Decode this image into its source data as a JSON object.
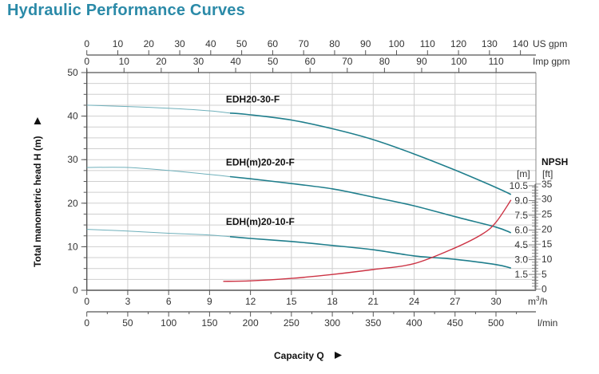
{
  "title": "Hydraulic Performance Curves",
  "colors": {
    "title": "#2b8aa8",
    "pump_curve": "#1f7e8c",
    "npsh_curve": "#cc3344",
    "grid": "#cfcfcf",
    "axis": "#555555"
  },
  "chart_data": {
    "type": "line",
    "title": "Hydraulic Performance Curves",
    "xlabel": "Capacity Q",
    "ylabel": "Total manometric head H (m)",
    "x_unit": "m³/h",
    "xlim": [
      0,
      33
    ],
    "ylim": [
      0,
      50
    ],
    "grid": true,
    "x_ticks": [
      0,
      3,
      6,
      9,
      12,
      15,
      18,
      21,
      24,
      27,
      30
    ],
    "y_ticks": [
      0,
      10,
      20,
      30,
      40,
      50
    ],
    "secondary_x_axes": [
      {
        "unit": "US gpm",
        "position": "top",
        "ticks": [
          0,
          10,
          20,
          30,
          40,
          50,
          60,
          70,
          80,
          90,
          100,
          110,
          120,
          130,
          140
        ],
        "m3h_per_unit": 0.2271
      },
      {
        "unit": "Imp gpm",
        "position": "top",
        "ticks": [
          0,
          10,
          20,
          30,
          40,
          50,
          60,
          70,
          80,
          90,
          100,
          110
        ],
        "m3h_per_unit": 0.2728
      },
      {
        "unit": "l/min",
        "position": "bottom",
        "ticks": [
          0,
          50,
          100,
          150,
          200,
          250,
          300,
          350,
          400,
          450,
          500
        ],
        "m3h_per_unit": 0.06
      }
    ],
    "npsh_axis": {
      "title": "NPSH",
      "m_label": "[m]",
      "ft_label": "[ft]",
      "m_ticks": [
        "1.5",
        "3.0",
        "4.5",
        "6.0",
        "7.5",
        "9.0",
        "10.5"
      ],
      "ft_ticks": [
        0,
        5,
        10,
        15,
        20,
        25,
        30,
        35
      ],
      "range_m": [
        0,
        10.5
      ]
    },
    "series": [
      {
        "name": "EDH20-30-F",
        "kind": "head",
        "x": [
          0,
          3,
          6,
          9,
          10.5,
          12,
          15,
          18,
          21,
          24,
          27,
          30,
          31.1
        ],
        "y": [
          42.5,
          42.2,
          41.8,
          41.2,
          40.7,
          40.3,
          39.1,
          37.1,
          34.6,
          31.3,
          27.6,
          23.6,
          22.0
        ]
      },
      {
        "name": "EDH(m)20-20-F",
        "kind": "head",
        "x": [
          0,
          3,
          6,
          9,
          10.5,
          12,
          15,
          18,
          21,
          24,
          27,
          30,
          31.1
        ],
        "y": [
          28.2,
          28.2,
          27.5,
          26.6,
          26.1,
          25.6,
          24.5,
          23.3,
          21.4,
          19.4,
          16.9,
          14.5,
          13.2
        ]
      },
      {
        "name": "EDH(m)20-10-F",
        "kind": "head",
        "x": [
          0,
          3,
          6,
          9,
          10.5,
          12,
          15,
          18,
          21,
          24,
          27,
          30,
          31.1
        ],
        "y": [
          14.0,
          13.6,
          13.1,
          12.7,
          12.3,
          11.9,
          11.2,
          10.3,
          9.3,
          7.9,
          7.1,
          5.9,
          5.1
        ]
      },
      {
        "name": "NPSH",
        "kind": "npsh_m",
        "x": [
          10,
          12,
          15,
          18,
          21,
          24,
          27,
          29,
          30,
          31.1
        ],
        "y": [
          0.8,
          0.85,
          1.1,
          1.5,
          2.0,
          2.6,
          4.2,
          5.6,
          6.8,
          9.05
        ]
      }
    ],
    "annotations": [
      {
        "text": "EDH20-30-F",
        "x": 10.2,
        "y": 42.0
      },
      {
        "text": "EDH(m)20-20-F",
        "x": 10.2,
        "y": 27.6
      },
      {
        "text": "EDH(m)20-10-F",
        "x": 10.2,
        "y": 13.9
      }
    ]
  }
}
